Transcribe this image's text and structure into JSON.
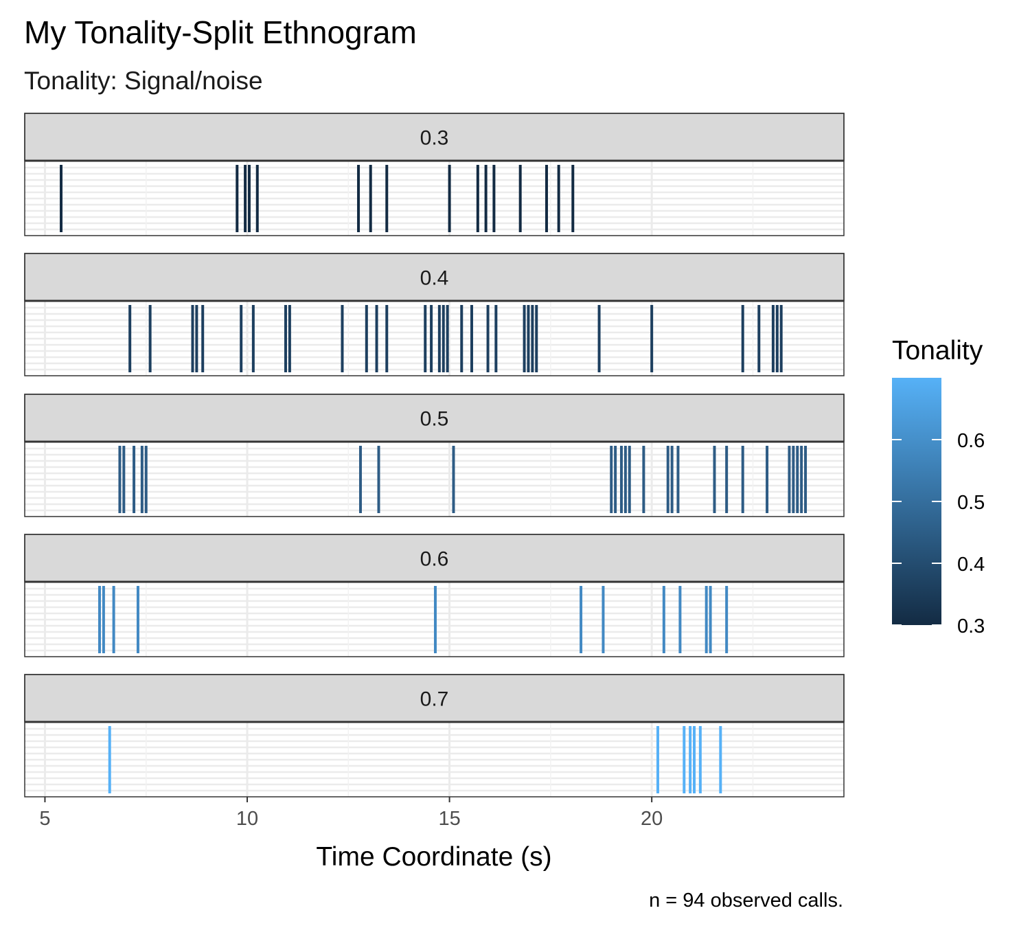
{
  "chart_data": {
    "type": "ethnogram",
    "title": "My Tonality-Split Ethnogram",
    "subtitle": "Tonality: Signal/noise",
    "xlabel": "Time Coordinate (s)",
    "caption": "n = 94 observed calls.",
    "xlim": [
      4.5,
      24.75
    ],
    "x_ticks": [
      5,
      10,
      15,
      20
    ],
    "x_tick_labels": [
      "5",
      "10",
      "15",
      "20"
    ],
    "grid": true,
    "legend": {
      "title": "Tonality",
      "position": "right",
      "range": [
        0.3,
        0.7
      ],
      "ticks": [
        0.3,
        0.4,
        0.5,
        0.6
      ],
      "tick_labels": [
        "0.3",
        "0.4",
        "0.5",
        "0.6"
      ],
      "color_low": "#132b43",
      "color_high": "#56b1f7"
    },
    "panels": [
      {
        "label": "0.3",
        "tonality": 0.3,
        "color": "#132b43",
        "calls": [
          5.4,
          9.75,
          9.95,
          10.05,
          10.25,
          12.75,
          13.05,
          13.45,
          15.0,
          15.7,
          15.9,
          16.1,
          16.75,
          17.4,
          17.7,
          18.05
        ]
      },
      {
        "label": "0.4",
        "tonality": 0.4,
        "color": "#1d3f5f",
        "calls": [
          7.1,
          7.6,
          8.65,
          8.75,
          8.9,
          9.85,
          10.15,
          10.95,
          11.05,
          12.35,
          12.95,
          13.2,
          13.45,
          14.4,
          14.55,
          14.75,
          14.85,
          14.95,
          15.3,
          15.55,
          15.95,
          16.15,
          16.85,
          16.95,
          17.05,
          17.15,
          18.7,
          20.0,
          22.25,
          22.65,
          23.0,
          23.1,
          23.2
        ]
      },
      {
        "label": "0.5",
        "tonality": 0.5,
        "color": "#2e5c85",
        "calls": [
          6.85,
          6.95,
          7.2,
          7.4,
          7.5,
          12.8,
          13.25,
          15.1,
          19.0,
          19.1,
          19.25,
          19.35,
          19.45,
          19.8,
          20.4,
          20.5,
          20.65,
          21.55,
          21.85,
          22.25,
          22.85,
          23.4,
          23.5,
          23.6,
          23.7,
          23.8
        ]
      },
      {
        "label": "0.6",
        "tonality": 0.6,
        "color": "#4289c3",
        "calls": [
          6.35,
          6.45,
          6.7,
          7.3,
          14.65,
          18.25,
          18.8,
          20.3,
          20.7,
          21.35,
          21.45,
          21.85
        ]
      },
      {
        "label": "0.7",
        "tonality": 0.7,
        "color": "#56b1f7",
        "calls": [
          6.6,
          20.15,
          20.8,
          20.95,
          21.05,
          21.2,
          21.7
        ]
      }
    ]
  }
}
